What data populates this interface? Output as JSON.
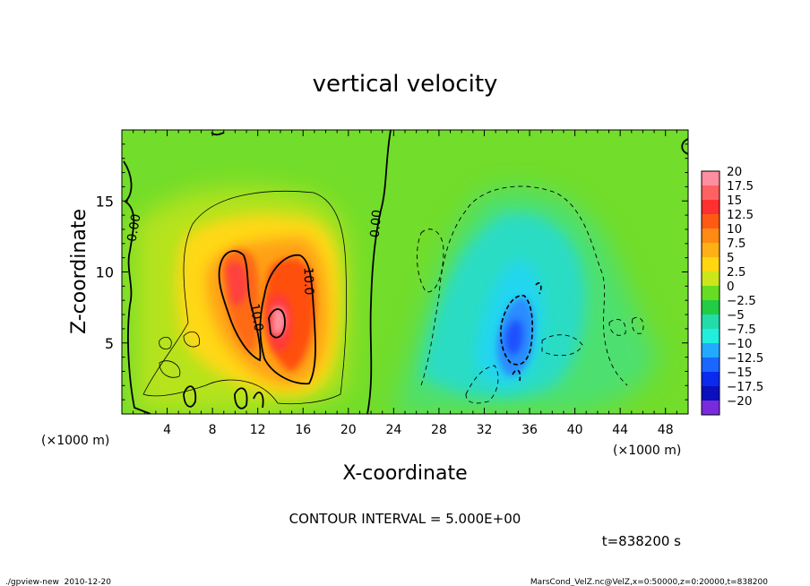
{
  "chart_data": {
    "type": "heatmap",
    "title": "vertical velocity",
    "xlabel": "X-coordinate",
    "ylabel": "Z-coordinate",
    "x_unit": "(×1000 m)",
    "y_unit": "(×1000 m)",
    "xlim": [
      0,
      50
    ],
    "ylim": [
      0,
      20
    ],
    "x_ticks": [
      4,
      8,
      12,
      16,
      20,
      24,
      28,
      32,
      36,
      40,
      44,
      48
    ],
    "y_ticks": [
      5,
      10,
      15
    ],
    "colorbar": {
      "levels": [
        20,
        17.5,
        15,
        12.5,
        10,
        7.5,
        5,
        2.5,
        0,
        -2.5,
        -5,
        -7.5,
        -10,
        -12.5,
        -15,
        -17.5,
        -20
      ],
      "level_labels": [
        "20",
        "17.5",
        "15",
        "12.5",
        "10",
        "7.5",
        "5",
        "2.5",
        "0",
        "−2.5",
        "−5",
        "−7.5",
        "−10",
        "−12.5",
        "−15",
        "−17.5",
        "−20"
      ],
      "colors": [
        "#ff8ea0",
        "#ff6262",
        "#ff3030",
        "#ff5a14",
        "#ff8a14",
        "#ffb014",
        "#ffd810",
        "#cce61a",
        "#66dd22",
        "#22cc44",
        "#22ddaa",
        "#22eedd",
        "#22aaff",
        "#1a66ff",
        "#0a2aee",
        "#0a10bb",
        "#7a2add"
      ]
    },
    "contour_labels": [
      "0.00",
      "0.00",
      "10.0",
      "10.0"
    ],
    "contour_interval_text": "CONTOUR INTERVAL = 5.000E+00",
    "time_text": "t=838200 s",
    "footer_left": "./gpview-new  2010-12-20",
    "footer_right": "MarsCond_VelZ.nc@VelZ,x=0:50000,z=0:20000,t=838200"
  }
}
